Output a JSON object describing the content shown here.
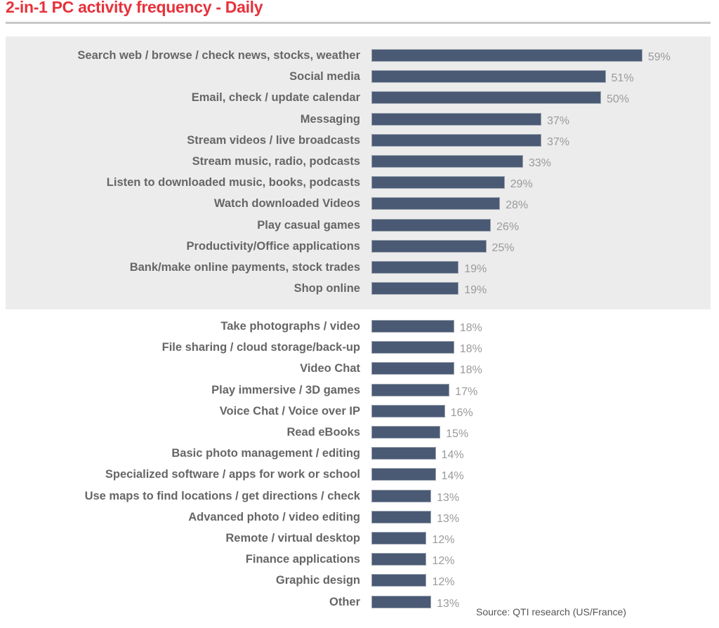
{
  "chart_data": {
    "type": "bar",
    "orientation": "horizontal",
    "title": "2-in-1 PC activity frequency - Daily",
    "source": "Source: QTI research (US/France)",
    "value_format": "percent",
    "xlim": [
      0,
      60
    ],
    "highlighted_count": 12,
    "categories": [
      "Search web / browse / check news, stocks, weather",
      "Social media",
      "Email, check / update calendar",
      "Messaging",
      "Stream videos / live broadcasts",
      "Stream music, radio, podcasts",
      "Listen to downloaded music, books, podcasts",
      "Watch downloaded Videos",
      "Play casual games",
      "Productivity/Office applications",
      "Bank/make online payments, stock trades",
      "Shop online",
      "Take photographs / video",
      "File sharing / cloud storage/back-up",
      "Video Chat",
      "Play immersive / 3D games",
      "Voice Chat / Voice over IP",
      "Read eBooks",
      "Basic photo management / editing",
      "Specialized software / apps for work or school",
      "Use maps to find locations / get directions / check",
      "Advanced photo / video editing",
      "Remote / virtual desktop",
      "Finance applications",
      "Graphic design",
      "Other"
    ],
    "values": [
      59,
      51,
      50,
      37,
      37,
      33,
      29,
      28,
      26,
      25,
      19,
      19,
      18,
      18,
      18,
      17,
      16,
      15,
      14,
      14,
      13,
      13,
      12,
      12,
      12,
      13
    ],
    "labels": [
      "59%",
      "51%",
      "50%",
      "37%",
      "37%",
      "33%",
      "29%",
      "28%",
      "26%",
      "25%",
      "19%",
      "19%",
      "18%",
      "18%",
      "18%",
      "17%",
      "16%",
      "15%",
      "14%",
      "14%",
      "13%",
      "13%",
      "12%",
      "12%",
      "12%",
      "13%"
    ],
    "colors": {
      "bar": "#4a5a74",
      "title": "#e8313a",
      "highlight_bg": "#ececec"
    }
  }
}
